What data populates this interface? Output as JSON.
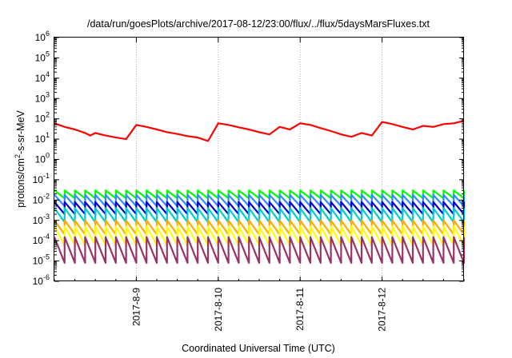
{
  "chart_data": {
    "type": "line",
    "title": "/data/run/goesPlots/archive/2017-08-12/23:00/flux/../flux/5daysMarsFluxes.txt",
    "xlabel": "Coordinated Universal Time (UTC)",
    "ylabel": "protons/cm2-s-sr-MeV",
    "yscale": "log",
    "ylim": [
      1e-06,
      1000000.0
    ],
    "y_ticks": [
      {
        "base": "10",
        "exp": "-6"
      },
      {
        "base": "10",
        "exp": "-5"
      },
      {
        "base": "10",
        "exp": "-4"
      },
      {
        "base": "10",
        "exp": "-3"
      },
      {
        "base": "10",
        "exp": "-2"
      },
      {
        "base": "10",
        "exp": "-1"
      },
      {
        "base": "10",
        "exp": "0"
      },
      {
        "base": "10",
        "exp": "1"
      },
      {
        "base": "10",
        "exp": "2"
      },
      {
        "base": "10",
        "exp": "3"
      },
      {
        "base": "10",
        "exp": "4"
      },
      {
        "base": "10",
        "exp": "5"
      },
      {
        "base": "10",
        "exp": "6"
      }
    ],
    "x_start": "2017-08-08T00:00",
    "x_end": "2017-08-13T00:00",
    "x_ticks": [
      {
        "label": "2017-8-9",
        "date": "2017-08-09T00:00"
      },
      {
        "label": "2017-8-10",
        "date": "2017-08-10T00:00"
      },
      {
        "label": "2017-8-11",
        "date": "2017-08-11T00:00"
      },
      {
        "label": "2017-8-12",
        "date": "2017-08-12T00:00"
      }
    ],
    "grid": true,
    "series": [
      {
        "color": "#ff0000",
        "points": [
          [
            "2017-08-08T00:00",
            60
          ],
          [
            "2017-08-08T03:00",
            40
          ],
          [
            "2017-08-08T06:00",
            30
          ],
          [
            "2017-08-08T09:00",
            20
          ],
          [
            "2017-08-08T10:30",
            15
          ],
          [
            "2017-08-08T12:00",
            20
          ],
          [
            "2017-08-08T15:00",
            15
          ],
          [
            "2017-08-08T18:00",
            12
          ],
          [
            "2017-08-08T21:00",
            10
          ],
          [
            "2017-08-09T00:00",
            50
          ],
          [
            "2017-08-09T03:00",
            40
          ],
          [
            "2017-08-09T06:00",
            30
          ],
          [
            "2017-08-09T09:00",
            22
          ],
          [
            "2017-08-09T12:00",
            18
          ],
          [
            "2017-08-09T15:00",
            14
          ],
          [
            "2017-08-09T18:00",
            12
          ],
          [
            "2017-08-09T21:00",
            8
          ],
          [
            "2017-08-10T00:00",
            60
          ],
          [
            "2017-08-10T03:00",
            50
          ],
          [
            "2017-08-10T06:00",
            38
          ],
          [
            "2017-08-10T09:00",
            30
          ],
          [
            "2017-08-10T12:00",
            22
          ],
          [
            "2017-08-10T15:00",
            17
          ],
          [
            "2017-08-10T18:00",
            40
          ],
          [
            "2017-08-10T21:00",
            30
          ],
          [
            "2017-08-11T00:00",
            60
          ],
          [
            "2017-08-11T03:00",
            50
          ],
          [
            "2017-08-11T06:00",
            35
          ],
          [
            "2017-08-11T09:00",
            25
          ],
          [
            "2017-08-11T12:00",
            17
          ],
          [
            "2017-08-11T15:00",
            13
          ],
          [
            "2017-08-11T18:00",
            20
          ],
          [
            "2017-08-11T21:00",
            15
          ],
          [
            "2017-08-12T00:00",
            70
          ],
          [
            "2017-08-12T03:00",
            55
          ],
          [
            "2017-08-12T06:00",
            40
          ],
          [
            "2017-08-12T09:00",
            30
          ],
          [
            "2017-08-12T12:00",
            45
          ],
          [
            "2017-08-12T15:00",
            40
          ],
          [
            "2017-08-12T18:00",
            55
          ],
          [
            "2017-08-12T21:00",
            60
          ],
          [
            "2017-08-13T00:00",
            80
          ]
        ]
      },
      {
        "color": "#00ff00",
        "upper": 0.03,
        "lower": 0.012
      },
      {
        "color": "#2b8cff",
        "upper": 0.018,
        "lower": 0.005
      },
      {
        "color": "#0000cc",
        "upper": 0.008,
        "lower": 0.002
      },
      {
        "color": "#00cccc",
        "upper": 0.004,
        "lower": 0.0008
      },
      {
        "color": "#ffaa00",
        "upper": 0.001,
        "lower": 0.0002
      },
      {
        "color": "#ffff00",
        "upper": 0.0005,
        "lower": 6e-05
      },
      {
        "color": "#993366",
        "upper": 0.00015,
        "lower": 8e-06
      }
    ]
  }
}
